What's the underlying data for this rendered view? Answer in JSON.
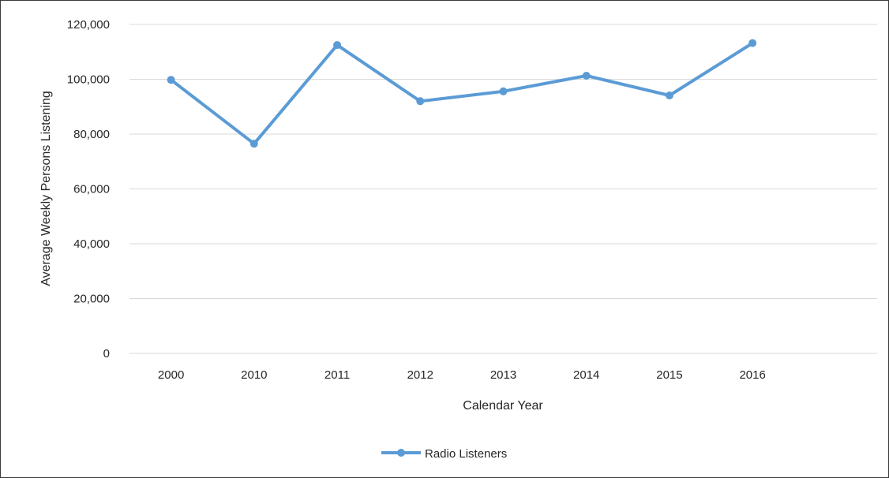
{
  "chart_data": {
    "type": "line",
    "title": "",
    "xlabel": "Calendar Year",
    "ylabel": "Average Weekly Persons Listening",
    "categories": [
      "2000",
      "2010",
      "2011",
      "2012",
      "2013",
      "2014",
      "2015",
      "2016"
    ],
    "series": [
      {
        "name": "Radio Listeners",
        "values": [
          99800,
          76500,
          112500,
          92000,
          95600,
          101300,
          94100,
          113200
        ],
        "color": "#5b9bd5"
      }
    ],
    "ylim": [
      0,
      120000
    ],
    "yticks": [
      0,
      20000,
      40000,
      60000,
      80000,
      100000,
      120000
    ],
    "ytick_labels": [
      "0",
      "20,000",
      "40,000",
      "60,000",
      "80,000",
      "100,000",
      "120,000"
    ],
    "grid": true,
    "legend_position": "bottom",
    "gridline_color": "#d9d9d9"
  }
}
